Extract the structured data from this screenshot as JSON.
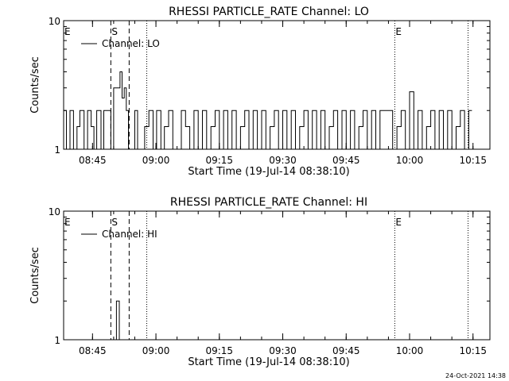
{
  "footer": {
    "date": "24-Oct-2021 14:38"
  },
  "chart_data": [
    {
      "type": "line",
      "title": "RHESSI PARTICLE_RATE Channel: LO",
      "xlabel": "Start Time (19-Jul-14 08:38:10)",
      "ylabel": "Counts/sec",
      "xlim": [
        "08:38:10",
        "10:19:00"
      ],
      "ylim": [
        1,
        10
      ],
      "yscale": "log",
      "grid": false,
      "legend_position": "top-left",
      "xticks": [
        "08:45",
        "09:00",
        "09:15",
        "09:30",
        "09:45",
        "10:00",
        "10:15"
      ],
      "yticks": [
        "1",
        "10"
      ],
      "series": [
        {
          "name": "Channel: LO",
          "color": "#000000",
          "x": [
            "08:38:10",
            "08:38:50",
            "08:39:40",
            "08:40:30",
            "08:41:20",
            "08:42:00",
            "08:43:00",
            "08:43:50",
            "08:44:40",
            "08:45:20",
            "08:46:00",
            "08:47:00",
            "08:47:40",
            "08:48:30",
            "08:49:20",
            "08:50:00",
            "08:50:20",
            "08:50:50",
            "08:51:30",
            "08:52:00",
            "08:52:30",
            "08:53:00",
            "08:53:30",
            "08:54:10",
            "08:55:00",
            "08:55:40",
            "08:56:30",
            "08:57:20",
            "08:58:20",
            "08:59:20",
            "09:00:10",
            "09:01:10",
            "09:02:00",
            "09:03:00",
            "09:04:00",
            "09:05:00",
            "09:06:00",
            "09:07:00",
            "09:08:00",
            "09:09:00",
            "09:10:00",
            "09:11:00",
            "09:12:00",
            "09:13:00",
            "09:14:00",
            "09:15:00",
            "09:16:00",
            "09:17:00",
            "09:18:00",
            "09:19:00",
            "09:20:00",
            "09:21:00",
            "09:22:00",
            "09:23:00",
            "09:24:00",
            "09:25:00",
            "09:26:00",
            "09:27:00",
            "09:28:00",
            "09:29:00",
            "09:30:00",
            "09:31:00",
            "09:32:00",
            "09:33:00",
            "09:34:00",
            "09:35:00",
            "09:36:00",
            "09:37:00",
            "09:38:00",
            "09:39:00",
            "09:40:00",
            "09:41:00",
            "09:42:00",
            "09:43:00",
            "09:44:00",
            "09:45:00",
            "09:46:00",
            "09:47:00",
            "09:48:00",
            "09:49:00",
            "09:50:00",
            "09:51:00",
            "09:52:00",
            "09:53:00",
            "09:54:00",
            "09:55:00",
            "09:56:00",
            "09:57:00",
            "09:58:00",
            "09:59:00",
            "10:00:00",
            "10:01:00",
            "10:02:00",
            "10:03:00",
            "10:04:00",
            "10:05:00",
            "10:06:00",
            "10:07:00",
            "10:08:00",
            "10:09:00",
            "10:10:00",
            "10:11:00",
            "10:12:00",
            "10:13:00",
            "10:14:00"
          ],
          "y": [
            2,
            1,
            2,
            1,
            1.5,
            2,
            1,
            2,
            1.5,
            1,
            2,
            1,
            2,
            2,
            1,
            3,
            3,
            3,
            4,
            2.5,
            3,
            2,
            1,
            1,
            2,
            1,
            1,
            1.5,
            2,
            1,
            2,
            1,
            1.5,
            2,
            1,
            1,
            2,
            1.5,
            1,
            2,
            1,
            2,
            1,
            1.5,
            2,
            1,
            2,
            1,
            2,
            1,
            1.5,
            2,
            1,
            2,
            1,
            2,
            1,
            1.5,
            2,
            1,
            2,
            1,
            2,
            1,
            1.5,
            2,
            1,
            2,
            1,
            2,
            1,
            1.5,
            2,
            1,
            2,
            1,
            2,
            1,
            1.5,
            2,
            1,
            2,
            1,
            2,
            2,
            2,
            1,
            1.5,
            2,
            1,
            2.8,
            1,
            2,
            1,
            1.5,
            2,
            1,
            2,
            1,
            2,
            1,
            1.5,
            2,
            1,
            2
          ]
        }
      ],
      "annotations": [
        {
          "label": "E",
          "time": "08:38:10",
          "style": "label"
        },
        {
          "label": "S",
          "time": "08:49:20",
          "style": "dashed"
        },
        {
          "label": "",
          "time": "08:53:40",
          "style": "dashed"
        },
        {
          "label": "",
          "time": "08:57:50",
          "style": "dotted"
        },
        {
          "label": "E",
          "time": "09:56:30",
          "style": "dotted"
        },
        {
          "label": "",
          "time": "10:13:50",
          "style": "dotted"
        }
      ]
    },
    {
      "type": "line",
      "title": "RHESSI PARTICLE_RATE Channel: HI",
      "xlabel": "Start Time (19-Jul-14 08:38:10)",
      "ylabel": "Counts/sec",
      "xlim": [
        "08:38:10",
        "10:19:00"
      ],
      "ylim": [
        1,
        10
      ],
      "yscale": "log",
      "grid": false,
      "legend_position": "top-left",
      "xticks": [
        "08:45",
        "09:00",
        "09:15",
        "09:30",
        "09:45",
        "10:00",
        "10:15"
      ],
      "yticks": [
        "1",
        "10"
      ],
      "series": [
        {
          "name": "Channel: HI",
          "color": "#000000",
          "x": [
            "08:38:10",
            "08:50:20",
            "08:50:40",
            "08:51:00",
            "08:51:20",
            "10:19:00"
          ],
          "y": [
            1,
            1,
            2,
            2,
            1,
            1
          ]
        }
      ],
      "annotations": [
        {
          "label": "E",
          "time": "08:38:10",
          "style": "label"
        },
        {
          "label": "S",
          "time": "08:49:20",
          "style": "dashed"
        },
        {
          "label": "",
          "time": "08:53:40",
          "style": "dashed"
        },
        {
          "label": "",
          "time": "08:57:50",
          "style": "dotted"
        },
        {
          "label": "E",
          "time": "09:56:30",
          "style": "dotted"
        },
        {
          "label": "",
          "time": "10:13:50",
          "style": "dotted"
        }
      ]
    }
  ]
}
